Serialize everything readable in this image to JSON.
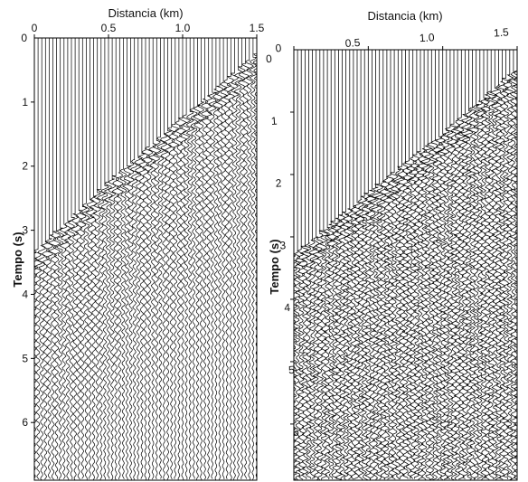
{
  "chart_data": [
    {
      "type": "seismic-wiggle",
      "xlabel": "Distancia (km)",
      "ylabel": "Tempo (s)",
      "x_ticks": [
        "0",
        "0.5",
        "1.0",
        "1.5"
      ],
      "y_ticks": [
        "1",
        "2",
        "3",
        "4",
        "5",
        "6"
      ],
      "xlim": [
        0,
        1.5
      ],
      "ylim": [
        0,
        6.9
      ],
      "y_inverted": true,
      "first_arrival": [
        [
          0,
          3.35
        ],
        [
          0.5,
          2.25
        ],
        [
          1.0,
          1.25
        ],
        [
          1.5,
          0.25
        ]
      ],
      "noise_level": "low"
    },
    {
      "type": "seismic-wiggle",
      "xlabel": "Distancia (km)",
      "ylabel": "Tempo (s)",
      "x_ticks": [
        "0",
        "0.5",
        "1.0",
        "1.5"
      ],
      "y_ticks": [
        "1",
        "2",
        "3",
        "4",
        "5",
        "6"
      ],
      "xlim": [
        0,
        1.5
      ],
      "ylim": [
        0,
        6.9
      ],
      "y_inverted": true,
      "first_arrival": [
        [
          0,
          3.3
        ],
        [
          0.5,
          2.3
        ],
        [
          1.0,
          1.35
        ],
        [
          1.5,
          0.3
        ]
      ],
      "noise_level": "high"
    }
  ]
}
